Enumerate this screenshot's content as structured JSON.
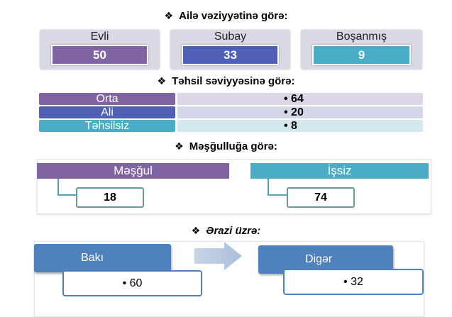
{
  "marital": {
    "heading": "Ailə vəziyyətinə görə:",
    "items": [
      {
        "label": "Evli",
        "value": "50",
        "color": "#8064a2"
      },
      {
        "label": "Subay",
        "value": "33",
        "color": "#4f5fb5"
      },
      {
        "label": "Boşanmış",
        "value": "9",
        "color": "#4bacc6"
      }
    ]
  },
  "education": {
    "heading": "Təhsil səviyyəsinə görə:",
    "items": [
      {
        "label": "Orta",
        "value": "• 64",
        "color": "#8064a2",
        "bar_color": "#dcd6e7"
      },
      {
        "label": "Ali",
        "value": "• 20",
        "color": "#4f5fb5",
        "bar_color": "#d4d6ea"
      },
      {
        "label": "Təhsilsiz",
        "value": "• 8",
        "color": "#4bacc6",
        "bar_color": "#d3e8ee"
      }
    ]
  },
  "employment": {
    "heading": "Məşğulluğa görə:",
    "items": [
      {
        "label": "Məşğul",
        "value": "18",
        "color": "#8064a2"
      },
      {
        "label": "İşsiz",
        "value": "74",
        "color": "#4bacc6"
      }
    ]
  },
  "region": {
    "heading": "Ərazi üzrə:",
    "items": [
      {
        "label": "Bakı",
        "value": "• 60"
      },
      {
        "label": "Digər",
        "value": "• 32"
      }
    ]
  }
}
